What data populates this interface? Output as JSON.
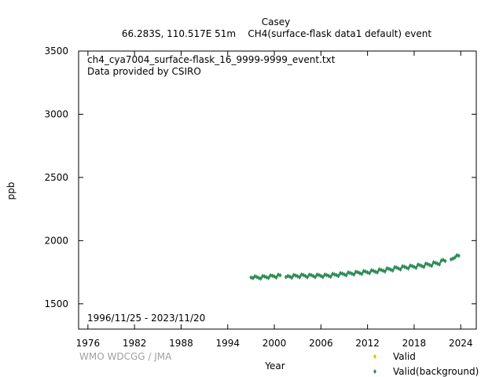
{
  "header": {
    "station": "Casey",
    "subtitle": "66.283S, 110.517E 51m    CH4(surface-flask data1 default) event"
  },
  "plot": {
    "filename": "ch4_cya7004_surface-flask_16_9999-9999_event.txt",
    "provider": "Data provided by CSIRO",
    "date_range": "1996/11/25 - 2023/11/20",
    "credit": "WMO WDCGG / JMA"
  },
  "colors": {
    "valid": "#e6b800",
    "background": "#2e8b57"
  },
  "chart_data": {
    "type": "scatter",
    "xlabel": "Year",
    "ylabel": "ppb",
    "xlim": [
      1974.8,
      2026.0
    ],
    "ylim": [
      1300,
      3500
    ],
    "xticks": [
      1976,
      1982,
      1988,
      1994,
      2000,
      2006,
      2012,
      2018,
      2024
    ],
    "yticks": [
      1500,
      2000,
      2500,
      3000,
      3500
    ],
    "legend_position": "bottom-right",
    "series": [
      {
        "name": "Valid",
        "points": []
      },
      {
        "name": "Valid(background)",
        "points": [
          [
            1997.0,
            1709
          ],
          [
            1997.25,
            1703
          ],
          [
            1997.5,
            1718
          ],
          [
            1997.75,
            1712
          ],
          [
            1998.0,
            1705
          ],
          [
            1998.25,
            1699
          ],
          [
            1998.5,
            1720
          ],
          [
            1998.75,
            1716
          ],
          [
            1999.0,
            1710
          ],
          [
            1999.25,
            1704
          ],
          [
            1999.5,
            1725
          ],
          [
            1999.75,
            1722
          ],
          [
            2000.0,
            1716
          ],
          [
            2000.25,
            1708
          ],
          [
            2000.5,
            1730
          ],
          [
            2000.75,
            1726
          ],
          [
            2001.5,
            1712
          ],
          [
            2001.75,
            1720
          ],
          [
            2002.0,
            1715
          ],
          [
            2002.25,
            1706
          ],
          [
            2002.5,
            1728
          ],
          [
            2002.75,
            1724
          ],
          [
            2003.0,
            1718
          ],
          [
            2003.25,
            1710
          ],
          [
            2003.5,
            1732
          ],
          [
            2003.75,
            1728
          ],
          [
            2004.0,
            1720
          ],
          [
            2004.25,
            1710
          ],
          [
            2004.5,
            1730
          ],
          [
            2004.75,
            1727
          ],
          [
            2005.0,
            1720
          ],
          [
            2005.25,
            1711
          ],
          [
            2005.5,
            1731
          ],
          [
            2005.75,
            1727
          ],
          [
            2006.0,
            1720
          ],
          [
            2006.25,
            1712
          ],
          [
            2006.5,
            1731
          ],
          [
            2006.75,
            1727
          ],
          [
            2007.0,
            1721
          ],
          [
            2007.25,
            1714
          ],
          [
            2007.5,
            1737
          ],
          [
            2007.75,
            1733
          ],
          [
            2008.0,
            1727
          ],
          [
            2008.25,
            1720
          ],
          [
            2008.5,
            1743
          ],
          [
            2008.75,
            1739
          ],
          [
            2009.0,
            1733
          ],
          [
            2009.25,
            1726
          ],
          [
            2009.5,
            1748
          ],
          [
            2009.75,
            1744
          ],
          [
            2010.0,
            1738
          ],
          [
            2010.25,
            1731
          ],
          [
            2010.5,
            1754
          ],
          [
            2010.75,
            1750
          ],
          [
            2011.0,
            1743
          ],
          [
            2011.25,
            1736
          ],
          [
            2011.5,
            1759
          ],
          [
            2011.75,
            1755
          ],
          [
            2012.0,
            1748
          ],
          [
            2012.25,
            1742
          ],
          [
            2012.5,
            1765
          ],
          [
            2012.75,
            1761
          ],
          [
            2013.0,
            1754
          ],
          [
            2013.25,
            1748
          ],
          [
            2013.5,
            1772
          ],
          [
            2013.75,
            1768
          ],
          [
            2014.0,
            1762
          ],
          [
            2014.25,
            1756
          ],
          [
            2014.5,
            1781
          ],
          [
            2014.75,
            1777
          ],
          [
            2015.0,
            1770
          ],
          [
            2015.25,
            1764
          ],
          [
            2015.5,
            1790
          ],
          [
            2015.75,
            1786
          ],
          [
            2016.0,
            1779
          ],
          [
            2016.25,
            1772
          ],
          [
            2016.5,
            1797
          ],
          [
            2016.75,
            1793
          ],
          [
            2017.0,
            1786
          ],
          [
            2017.25,
            1779
          ],
          [
            2017.5,
            1803
          ],
          [
            2017.75,
            1799
          ],
          [
            2018.0,
            1792
          ],
          [
            2018.25,
            1785
          ],
          [
            2018.5,
            1810
          ],
          [
            2018.75,
            1806
          ],
          [
            2019.0,
            1799
          ],
          [
            2019.25,
            1792
          ],
          [
            2019.5,
            1818
          ],
          [
            2019.75,
            1814
          ],
          [
            2020.0,
            1807
          ],
          [
            2020.25,
            1800
          ],
          [
            2020.5,
            1828
          ],
          [
            2020.75,
            1824
          ],
          [
            2021.0,
            1817
          ],
          [
            2021.25,
            1812
          ],
          [
            2021.5,
            1842
          ],
          [
            2021.75,
            1848
          ],
          [
            2022.0,
            1838
          ],
          [
            2022.75,
            1852
          ],
          [
            2023.0,
            1858
          ],
          [
            2023.25,
            1866
          ],
          [
            2023.5,
            1884
          ],
          [
            2023.75,
            1880
          ]
        ]
      }
    ]
  }
}
